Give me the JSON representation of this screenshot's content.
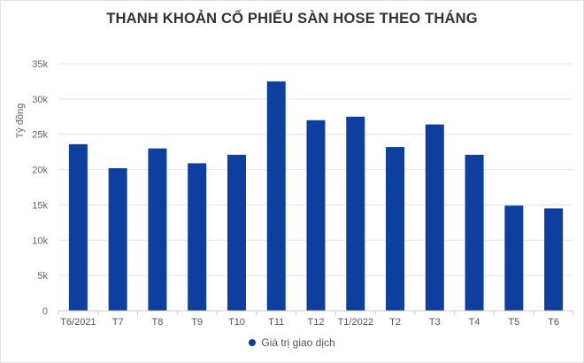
{
  "chart_data": {
    "type": "bar",
    "title": "THANH KHOẢN CỔ PHIẾU SÀN HOSE THEO THÁNG",
    "xlabel": "",
    "ylabel": "Tỷ đồng",
    "categories": [
      "T6/2021",
      "T7",
      "T8",
      "T9",
      "T10",
      "T11",
      "T12",
      "T1/2022",
      "T2",
      "T3",
      "T4",
      "T5",
      "T6"
    ],
    "series": [
      {
        "name": "Giá trị giao dịch",
        "color": "#0e3f9e",
        "values": [
          23600,
          20200,
          23000,
          20900,
          22100,
          32500,
          27000,
          27500,
          23200,
          26400,
          22100,
          14900,
          14500
        ]
      }
    ],
    "ylim": [
      0,
      35000
    ],
    "yticks": [
      0,
      5000,
      10000,
      15000,
      20000,
      25000,
      30000,
      35000
    ],
    "ytick_labels": [
      "0",
      "5k",
      "10k",
      "15k",
      "20k",
      "25k",
      "30k",
      "35k"
    ],
    "grid": true,
    "legend_position": "bottom-center"
  }
}
